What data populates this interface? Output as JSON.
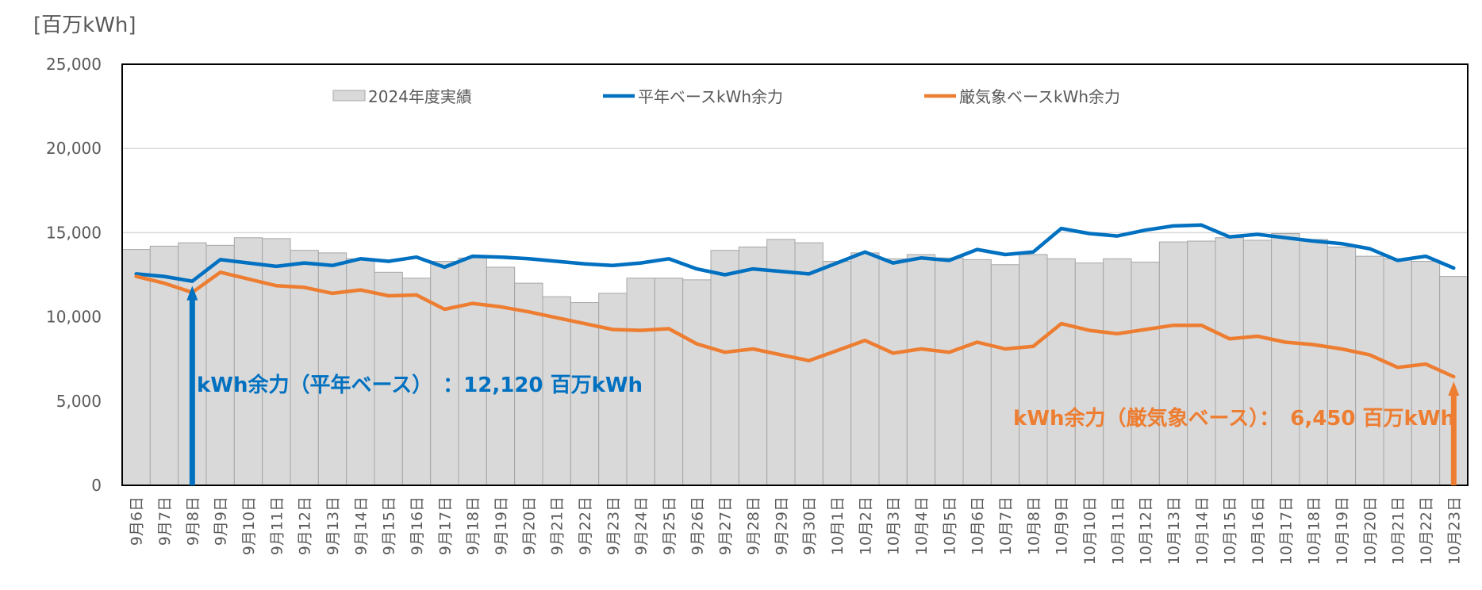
{
  "chart_data": {
    "type": "bar",
    "y_unit_label": "[百万kWh]",
    "ylim": [
      0,
      25000
    ],
    "yticks": [
      "0",
      "5,000",
      "10,000",
      "15,000",
      "20,000",
      "25,000"
    ],
    "ytick_values": [
      0,
      5000,
      10000,
      15000,
      20000,
      25000
    ],
    "grid": true,
    "legend_position": "top",
    "categories": [
      "9月6日",
      "9月7日",
      "9月8日",
      "9月9日",
      "9月10日",
      "9月11日",
      "9月12日",
      "9月13日",
      "9月14日",
      "9月15日",
      "9月16日",
      "9月17日",
      "9月18日",
      "9月19日",
      "9月20日",
      "9月21日",
      "9月22日",
      "9月23日",
      "9月24日",
      "9月25日",
      "9月26日",
      "9月27日",
      "9月28日",
      "9月29日",
      "9月30日",
      "10月1日",
      "10月2日",
      "10月3日",
      "10月4日",
      "10月5日",
      "10月6日",
      "10月7日",
      "10月8日",
      "10月9日",
      "10月10日",
      "10月11日",
      "10月12日",
      "10月13日",
      "10月14日",
      "10月15日",
      "10月16日",
      "10月17日",
      "10月18日",
      "10月19日",
      "10月20日",
      "10月21日",
      "10月22日",
      "10月23日"
    ],
    "series": [
      {
        "name": "2024年度実績",
        "kind": "bar",
        "color": "#d9d9d9",
        "values": [
          14000,
          14200,
          14400,
          14250,
          14700,
          14650,
          13950,
          13800,
          13450,
          12650,
          12300,
          13300,
          13500,
          12950,
          12000,
          11200,
          10850,
          11400,
          12300,
          12300,
          12200,
          13950,
          14150,
          14600,
          14400,
          13300,
          13800,
          13450,
          13700,
          13500,
          13400,
          13100,
          13700,
          13450,
          13200,
          13450,
          13250,
          14450,
          14500,
          14700,
          14550,
          14950,
          14600,
          14150,
          13600,
          13450,
          13300,
          12400
        ]
      },
      {
        "name": "平年ベースkWh余力",
        "kind": "line",
        "color": "#0070c0",
        "values": [
          12550,
          12400,
          12120,
          13400,
          13200,
          13000,
          13200,
          13050,
          13450,
          13300,
          13550,
          12950,
          13600,
          13550,
          13450,
          13300,
          13150,
          13050,
          13200,
          13450,
          12850,
          12500,
          12850,
          12700,
          12550,
          13200,
          13850,
          13200,
          13500,
          13350,
          14000,
          13700,
          13850,
          15250,
          14950,
          14800,
          15150,
          15400,
          15450,
          14750,
          14900,
          14700,
          14500,
          14350,
          14050,
          13350,
          13600,
          12900
        ]
      },
      {
        "name": "厳気象ベースkWh余力",
        "kind": "line",
        "color": "#ed7d31",
        "values": [
          12400,
          12000,
          11450,
          12650,
          12250,
          11850,
          11750,
          11400,
          11600,
          11250,
          11300,
          10450,
          10800,
          10600,
          10300,
          9950,
          9600,
          9250,
          9200,
          9300,
          8400,
          7900,
          8100,
          7750,
          7400,
          8000,
          8600,
          7850,
          8100,
          7900,
          8500,
          8100,
          8250,
          9600,
          9200,
          9000,
          9250,
          9500,
          9500,
          8700,
          8850,
          8500,
          8350,
          8100,
          7750,
          7000,
          7200,
          6450
        ]
      }
    ],
    "annotations": [
      {
        "text": "kWh余力（平年ベース）　：12,120 百万kWh",
        "color": "#0070c0",
        "category": "9月8日",
        "value": 12120
      },
      {
        "text": "kWh余力（厳気象ベース）：　6,450 百万kWh",
        "color": "#ed7d31",
        "category": "10月23日",
        "value": 6450
      }
    ]
  }
}
